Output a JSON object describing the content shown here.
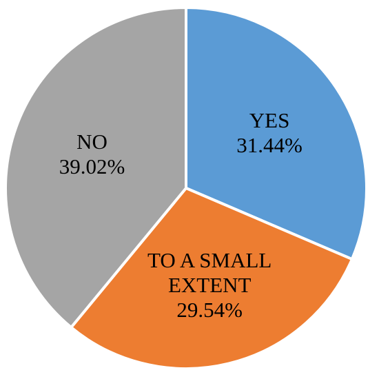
{
  "chart_data": {
    "type": "pie",
    "title": "",
    "slices": [
      {
        "label_lines": [
          "YES"
        ],
        "value_text": "31.44%",
        "value": 31.44,
        "color": "#5b9bd5"
      },
      {
        "label_lines": [
          "TO A SMALL",
          "EXTENT"
        ],
        "value_text": "29.54%",
        "value": 29.54,
        "color": "#ed7d31"
      },
      {
        "label_lines": [
          "NO"
        ],
        "value_text": "39.02%",
        "value": 39.02,
        "color": "#a5a5a5"
      }
    ],
    "start": "12 o'clock",
    "direction": "clockwise",
    "legend": "none"
  }
}
